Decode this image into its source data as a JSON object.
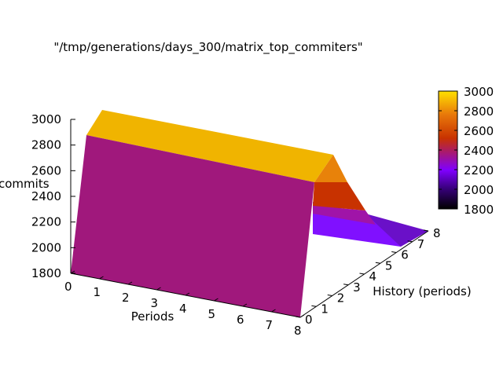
{
  "chart_data": {
    "type": "surface",
    "title": "\"/tmp/generations/days_300/matrix_top_commiters\"",
    "xlabel": "Periods",
    "ylabel": "History (periods)",
    "zlabel": "commits",
    "x_ticks": [
      "0",
      "1",
      "2",
      "3",
      "4",
      "5",
      "6",
      "7",
      "8"
    ],
    "y_ticks": [
      "0",
      "1",
      "2",
      "3",
      "4",
      "5",
      "6",
      "7",
      "8"
    ],
    "z_ticks": [
      "1800",
      "2000",
      "2200",
      "2400",
      "2600",
      "2800",
      "3000"
    ],
    "xlim": [
      0,
      8
    ],
    "ylim": [
      0,
      8
    ],
    "zlim": [
      1800,
      3000
    ],
    "colorbar": {
      "ticks": [
        "1800",
        "2000",
        "2200",
        "2400",
        "2600",
        "2800",
        "3000"
      ],
      "range": [
        1800,
        3000
      ],
      "palette": [
        "#000000",
        "#3a0080",
        "#8000ff",
        "#a0148c",
        "#c83200",
        "#e8780a",
        "#ffe000"
      ]
    },
    "surface_profile": {
      "history": [
        0,
        1,
        2,
        3,
        4,
        5,
        6,
        7,
        8
      ],
      "commits": [
        2900,
        2900,
        2900,
        2900,
        2600,
        2450,
        2300,
        2150,
        2100
      ]
    },
    "colors": {
      "front_face": "#a0187c",
      "top_band": "#f0b400",
      "slope_orange": "#e8820a",
      "slope_red": "#c83200",
      "slope_magenta": "#a014a8",
      "floor_violet": "#8010ff",
      "floor_dark": "#6a10c8"
    }
  }
}
